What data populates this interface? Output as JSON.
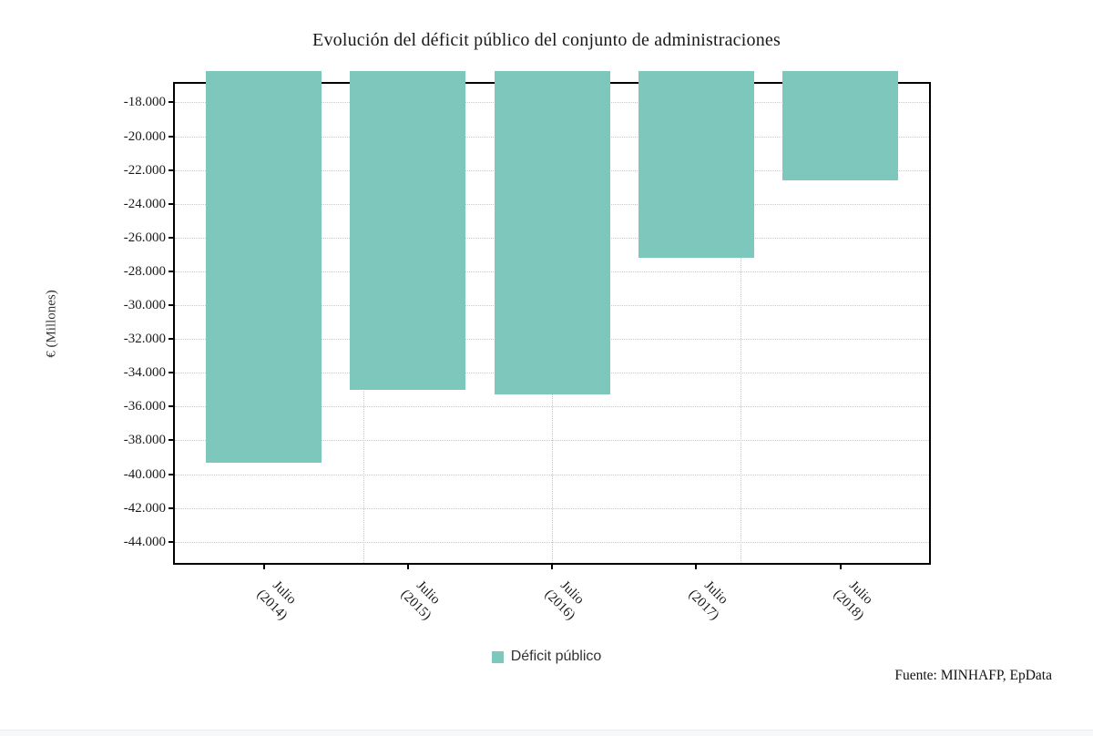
{
  "page": {
    "title": "Evolución del déficit público del conjunto de administraciones",
    "source": "Fuente: MINHAFP, EpData"
  },
  "chart_data": {
    "type": "bar",
    "title": "Evolución del déficit público del conjunto de administraciones",
    "xlabel": "",
    "ylabel": "€ (Millones)",
    "categories": [
      "Julio (2014)",
      "Julio (2015)",
      "Julio (2016)",
      "Julio (2017)",
      "Julio (2018)"
    ],
    "series": [
      {
        "name": "Déficit público",
        "values": [
          -39300,
          -35000,
          -35300,
          -27200,
          -22600
        ],
        "color": "#7ec7bd"
      }
    ],
    "y_ticks": [
      {
        "value": -18000,
        "label": "-18.000"
      },
      {
        "value": -20000,
        "label": "-20.000"
      },
      {
        "value": -22000,
        "label": "-22.000"
      },
      {
        "value": -24000,
        "label": "-24.000"
      },
      {
        "value": -26000,
        "label": "-26.000"
      },
      {
        "value": -28000,
        "label": "-28.000"
      },
      {
        "value": -30000,
        "label": "-30.000"
      },
      {
        "value": -32000,
        "label": "-32.000"
      },
      {
        "value": -34000,
        "label": "-34.000"
      },
      {
        "value": -36000,
        "label": "-36.000"
      },
      {
        "value": -38000,
        "label": "-38.000"
      },
      {
        "value": -40000,
        "label": "-40.000"
      },
      {
        "value": -42000,
        "label": "-42.000"
      },
      {
        "value": -44000,
        "label": "-44.000"
      }
    ],
    "ylim": {
      "top": -16900,
      "bottom": -45250
    },
    "grid": "dotted",
    "legend": {
      "position": "bottom-center",
      "label": "Déficit público",
      "swatch_color": "#7ec7bd"
    },
    "source": "Fuente: MINHAFP, EpData",
    "colors": {
      "bar": "#7ec7bd",
      "grid": "#c9c9c9",
      "axis": "#000000",
      "text": "#1a1a1a"
    }
  }
}
